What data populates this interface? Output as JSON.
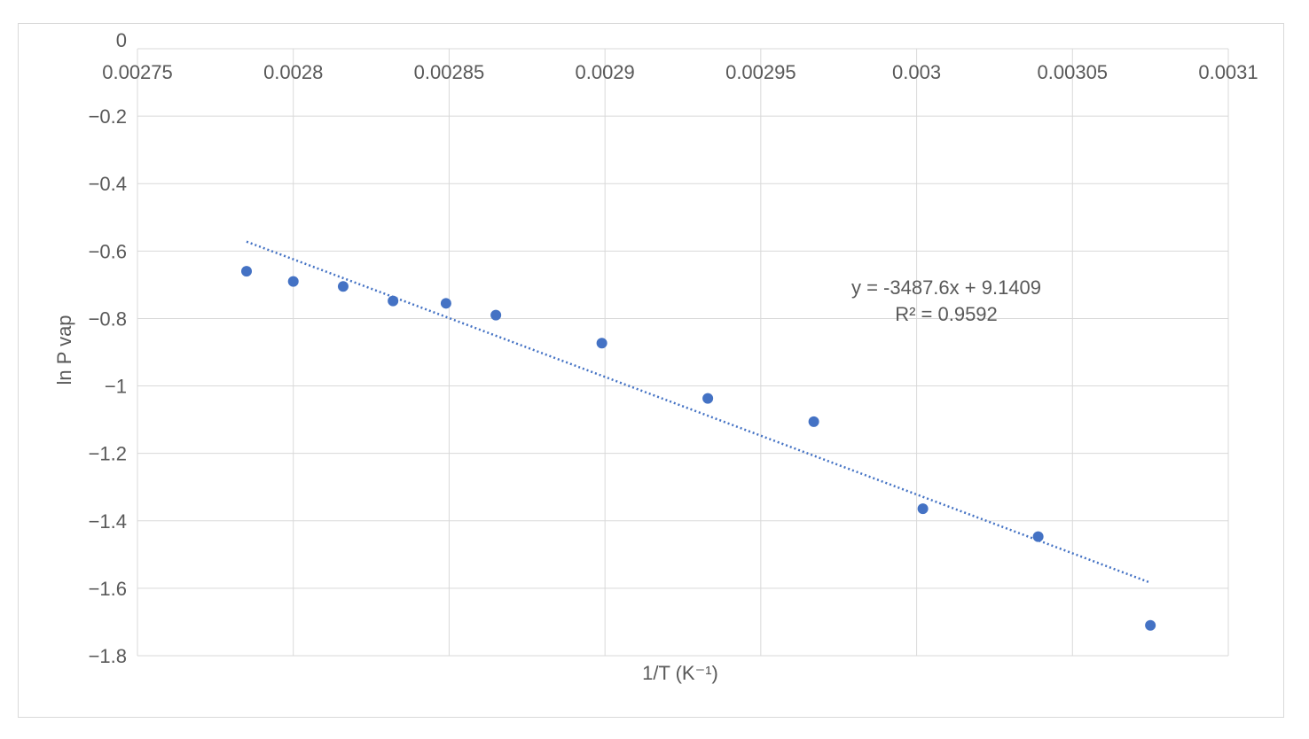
{
  "chart_data": {
    "type": "scatter",
    "title": "",
    "xlabel": "1/T (K⁻¹)",
    "ylabel": "ln P vap",
    "xlim": [
      0.00275,
      0.0031
    ],
    "ylim": [
      -1.8,
      0
    ],
    "x_ticks": [
      "0.00275",
      "0.0028",
      "0.00285",
      "0.0029",
      "0.00295",
      "0.003",
      "0.00305",
      "0.0031"
    ],
    "y_ticks": [
      "0",
      "−0.2",
      "−0.4",
      "−0.6",
      "−0.8",
      "−1",
      "−1.2",
      "−1.4",
      "−1.6",
      "−1.8"
    ],
    "grid": true,
    "legend": "none",
    "marker_color": "#4472c4",
    "trendline_color": "#4472c4",
    "series": [
      {
        "points": [
          [
            0.002785,
            -0.66
          ],
          [
            0.0028,
            -0.69
          ],
          [
            0.002816,
            -0.705
          ],
          [
            0.002832,
            -0.748
          ],
          [
            0.002849,
            -0.755
          ],
          [
            0.002865,
            -0.79
          ],
          [
            0.002899,
            -0.873
          ],
          [
            0.002933,
            -1.037
          ],
          [
            0.002967,
            -1.106
          ],
          [
            0.003002,
            -1.364
          ],
          [
            0.003039,
            -1.447
          ],
          [
            0.003075,
            -1.71
          ]
        ]
      }
    ],
    "trendline": {
      "slope": -3487.6,
      "intercept": 9.1409,
      "x_range": [
        0.002785,
        0.003075
      ],
      "equation": "y = -3487.6x + 9.1409",
      "r_squared": "R² = 0.9592"
    }
  }
}
